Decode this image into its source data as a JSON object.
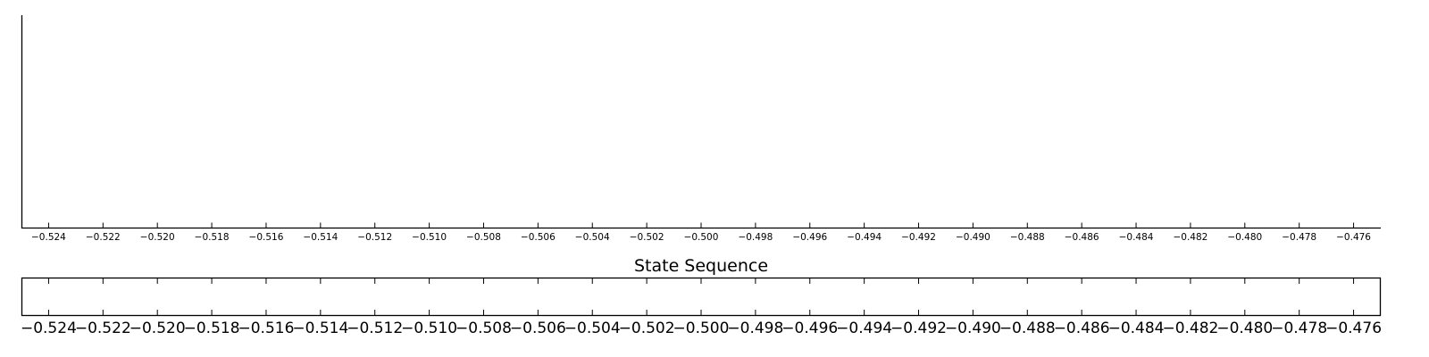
{
  "chart_data": [
    {
      "type": "line",
      "title": "",
      "xlabel": "",
      "ylabel": "",
      "xlim": [
        -0.525,
        -0.475
      ],
      "x_ticks": [
        -0.524,
        -0.522,
        -0.52,
        -0.518,
        -0.516,
        -0.514,
        -0.512,
        -0.51,
        -0.508,
        -0.506,
        -0.504,
        -0.502,
        -0.5,
        -0.498,
        -0.496,
        -0.494,
        -0.492,
        -0.49,
        -0.488,
        -0.486,
        -0.484,
        -0.482,
        -0.48,
        -0.478,
        -0.476
      ],
      "x_tick_labels": [
        "−0.524",
        "−0.522",
        "−0.520",
        "−0.518",
        "−0.516",
        "−0.514",
        "−0.512",
        "−0.510",
        "−0.508",
        "−0.506",
        "−0.504",
        "−0.502",
        "−0.500",
        "−0.498",
        "−0.496",
        "−0.494",
        "−0.492",
        "−0.490",
        "−0.488",
        "−0.486",
        "−0.484",
        "−0.482",
        "−0.480",
        "−0.478",
        "−0.476"
      ],
      "y_ticks": [],
      "series": [],
      "grid": false,
      "spines": [
        "left",
        "bottom"
      ]
    },
    {
      "type": "heatmap",
      "title": "State Sequence",
      "xlabel": "",
      "ylabel": "",
      "xlim": [
        -0.525,
        -0.475
      ],
      "x_ticks": [
        -0.524,
        -0.522,
        -0.52,
        -0.518,
        -0.516,
        -0.514,
        -0.512,
        -0.51,
        -0.508,
        -0.506,
        -0.504,
        -0.502,
        -0.5,
        -0.498,
        -0.496,
        -0.494,
        -0.492,
        -0.49,
        -0.488,
        -0.486,
        -0.484,
        -0.482,
        -0.48,
        -0.478,
        -0.476
      ],
      "x_tick_labels": [
        "−0.524",
        "−0.522",
        "−0.520",
        "−0.518",
        "−0.516",
        "−0.514",
        "−0.512",
        "−0.510",
        "−0.508",
        "−0.506",
        "−0.504",
        "−0.502",
        "−0.500",
        "−0.498",
        "−0.496",
        "−0.494",
        "−0.492",
        "−0.490",
        "−0.488",
        "−0.486",
        "−0.484",
        "−0.482",
        "−0.480",
        "−0.478",
        "−0.476"
      ],
      "y_ticks": [],
      "values": [],
      "grid": false,
      "spines": [
        "left",
        "bottom",
        "top",
        "right"
      ]
    }
  ],
  "colors": {
    "axis": "#000000",
    "background": "#ffffff"
  }
}
